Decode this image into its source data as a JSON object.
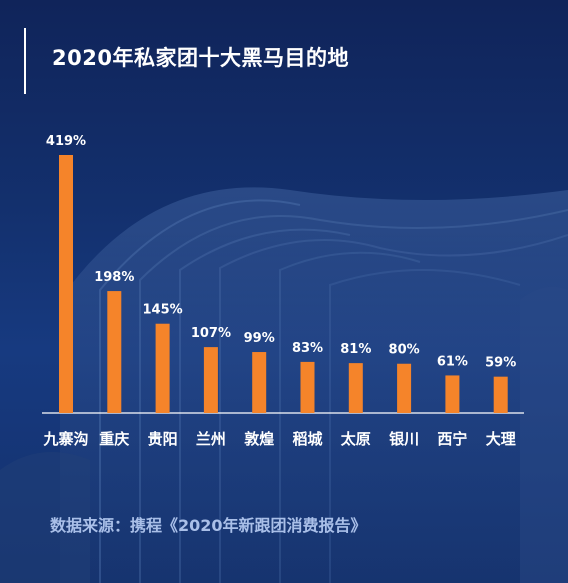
{
  "title": "2020年私家团十大黑马目的地",
  "source": "数据来源：携程《2020年新跟团消费报告》",
  "colors": {
    "bar": "#f5842a",
    "label": "#ffffff",
    "axis": "#ffffff",
    "background": "#13306d"
  },
  "chart_data": {
    "type": "bar",
    "title": "2020年私家团十大黑马目的地",
    "xlabel": "",
    "ylabel": "",
    "categories": [
      "九寨沟",
      "重庆",
      "贵阳",
      "兰州",
      "敦煌",
      "稻城",
      "太原",
      "银川",
      "西宁",
      "大理"
    ],
    "values": [
      419,
      198,
      145,
      107,
      99,
      83,
      81,
      80,
      61,
      59
    ],
    "value_labels": [
      "419%",
      "198%",
      "145%",
      "107%",
      "99%",
      "83%",
      "81%",
      "80%",
      "61%",
      "59%"
    ],
    "unit": "%",
    "ylim": [
      0,
      419
    ],
    "grid": false,
    "legend": "none"
  }
}
